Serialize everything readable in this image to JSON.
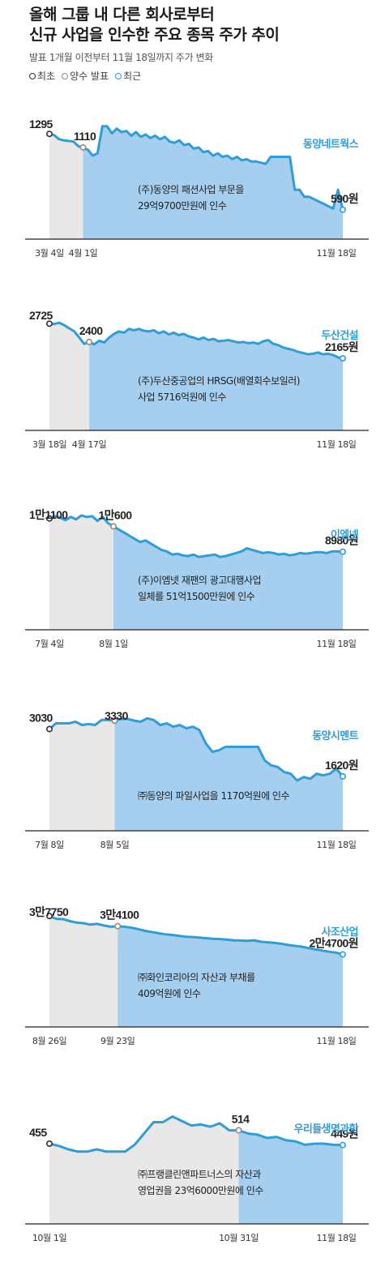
{
  "header": {
    "title": "올해 그룹 내 다른 회사로부터\n신규 사업을 인수한 주요 종목 주가 추이",
    "subtitle": "발표 1개월 이전부터 11월 18일까지 주가 변화",
    "legend": {
      "start": "최초",
      "announce": "양수 발표",
      "recent": "최근"
    }
  },
  "colors": {
    "line": "#2f9dd8",
    "fill_after": "#a6cfef",
    "fill_before": "#e8e8e8",
    "axis": "#222222"
  },
  "chart_data": [
    {
      "type": "area",
      "company": "동양네트웍스",
      "note": [
        "(주)동양의 패션사업 부문을",
        "29억9700만원에 인수"
      ],
      "labels": {
        "start": "1295",
        "announce": "1110",
        "recent": "590원"
      },
      "ticks": [
        "3월 4일",
        "4월 1일",
        "11월 18일"
      ],
      "announce_fraction": 0.12,
      "ylim": [
        400,
        1400
      ],
      "values": [
        1295,
        1285,
        1250,
        1240,
        1235,
        1230,
        1190,
        1180,
        1160,
        1110,
        1130,
        1360,
        1360,
        1300,
        1340,
        1310,
        1320,
        1280,
        1310,
        1270,
        1290,
        1260,
        1280,
        1250,
        1270,
        1230,
        1220,
        1240,
        1200,
        1210,
        1170,
        1180,
        1140,
        1150,
        1110,
        1130,
        1100,
        1110,
        1080,
        1100,
        1070,
        1080,
        1060,
        1060,
        1050,
        1040,
        1100,
        1100,
        1100,
        1100,
        1100,
        820,
        820,
        760,
        760,
        740,
        720,
        700,
        680,
        660,
        820,
        650
      ]
    },
    {
      "type": "area",
      "company": "두산건설",
      "note": [
        "(주)두산중공업의 HRSG(배열회수보일러)",
        "사업 5716억원에 인수"
      ],
      "labels": {
        "start": "2725",
        "announce": "2400",
        "recent": "2165원"
      },
      "ticks": [
        "3월 18일",
        "4월 17일",
        "11월 18일"
      ],
      "announce_fraction": 0.13,
      "ylim": [
        1000,
        2900
      ],
      "values": [
        2725,
        2720,
        2740,
        2700,
        2650,
        2600,
        2500,
        2400,
        2430,
        2390,
        2450,
        2420,
        2500,
        2560,
        2600,
        2580,
        2640,
        2620,
        2640,
        2610,
        2600,
        2620,
        2570,
        2600,
        2550,
        2580,
        2540,
        2560,
        2520,
        2500,
        2470,
        2500,
        2460,
        2480,
        2440,
        2450,
        2460,
        2440,
        2420,
        2430,
        2410,
        2420,
        2400,
        2440,
        2460,
        2400,
        2380,
        2340,
        2320,
        2300,
        2270,
        2250,
        2230,
        2240,
        2260,
        2230,
        2240,
        2220,
        2180,
        2165
      ]
    },
    {
      "type": "area",
      "company": "이엠넷",
      "note": [
        "(주)이엠넷 재팬의 광고대행사업",
        "일체를 51억1500만원에 인수"
      ],
      "labels": {
        "start": "1만1100",
        "announce": "1만600",
        "recent": "8980원"
      },
      "ticks": [
        "7월 4일",
        "8월 1일",
        "11월 18일"
      ],
      "announce_fraction": 0.21,
      "ylim": [
        4000,
        11500
      ],
      "values": [
        11100,
        11250,
        11150,
        11000,
        11200,
        11050,
        11300,
        11200,
        11250,
        10950,
        11200,
        10800,
        10600,
        10400,
        10200,
        10000,
        9800,
        9600,
        9700,
        9500,
        9300,
        9100,
        9000,
        8800,
        8850,
        8750,
        8700,
        8800,
        8650,
        8700,
        8750,
        8800,
        8650,
        8700,
        8800,
        8900,
        9000,
        9200,
        9100,
        9000,
        8900,
        8950,
        8900,
        8800,
        8850,
        8750,
        8800,
        8900,
        8850,
        8900,
        8950,
        8950,
        8900,
        9000,
        9000,
        8980
      ]
    },
    {
      "type": "area",
      "company": "동양시멘트",
      "note": [
        "㈜동양의 파일사업을 1170억원에 인수"
      ],
      "labels": {
        "start": "3030",
        "announce": "3330",
        "recent": "1620원"
      },
      "ticks": [
        "7월 8일",
        "8월 5일",
        "11월 18일"
      ],
      "announce_fraction": 0.23,
      "ylim": [
        0,
        3500
      ],
      "values": [
        3030,
        3200,
        3200,
        3200,
        3250,
        3150,
        3180,
        3150,
        3300,
        3300,
        3280,
        3330,
        3330,
        3280,
        3250,
        3350,
        3300,
        3150,
        3200,
        3100,
        3150,
        3050,
        3100,
        3000,
        2600,
        2350,
        2400,
        2500,
        2500,
        2500,
        2500,
        2500,
        2500,
        2100,
        1950,
        1900,
        1750,
        1700,
        1500,
        1600,
        1550,
        1700,
        1650,
        1700,
        1850,
        1620
      ]
    },
    {
      "type": "area",
      "company": "사조산업",
      "note": [
        "㈜화인코리아의 자산과 부채를",
        "409억원에 인수"
      ],
      "labels": {
        "start": "3만7750",
        "announce": "3만4100",
        "recent": "2만4700원"
      },
      "ticks": [
        "8월 26일",
        "9월 23일",
        "11월 18일"
      ],
      "announce_fraction": 0.23,
      "ylim": [
        0,
        40000
      ],
      "values": [
        37750,
        36800,
        36700,
        36000,
        35500,
        35300,
        34800,
        35100,
        34500,
        34100,
        34300,
        34100,
        33800,
        33300,
        32700,
        32300,
        31900,
        31500,
        31300,
        31000,
        30700,
        30600,
        30400,
        30200,
        30000,
        29900,
        29700,
        29500,
        29400,
        29300,
        29500,
        29000,
        28800,
        28600,
        28300,
        27900,
        27600,
        27300,
        26800,
        26400,
        26000,
        25600,
        25300,
        24700
      ]
    },
    {
      "type": "area",
      "company": "우리들생명과학",
      "note": [
        "㈜프랭클린앤파트너스의 자산과",
        "영업권을 23억6000만원에 인수"
      ],
      "labels": {
        "start": "455",
        "announce": "514",
        "recent": "449원"
      },
      "ticks": [
        "10월 1일",
        "10월 31일",
        "11월 18일"
      ],
      "announce_fraction": 0.64,
      "ylim": [
        100,
        620
      ],
      "values": [
        455,
        445,
        430,
        420,
        420,
        430,
        420,
        420,
        420,
        450,
        500,
        550,
        550,
        575,
        555,
        535,
        540,
        530,
        545,
        514,
        514,
        500,
        495,
        480,
        485,
        470,
        465,
        450,
        455,
        455,
        450,
        449
      ]
    }
  ]
}
